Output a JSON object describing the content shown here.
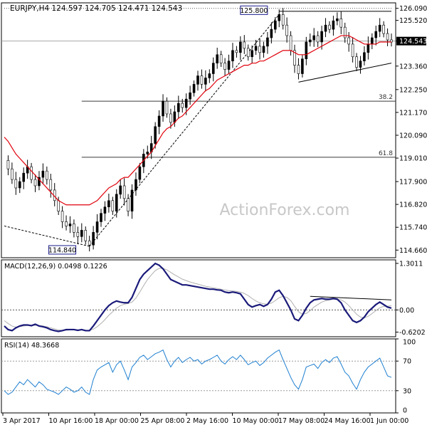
{
  "header": {
    "symbol_line": "EURJPY,H4  124.597 124.705 124.471 124.543"
  },
  "watermark": "ActionForex.com",
  "chart_data": [
    {
      "id": "price",
      "type": "candlestick",
      "title": "EURJPY,H4  124.597 124.705 124.471 124.543",
      "ylim": [
        114.3,
        126.35
      ],
      "y_ticks": [
        "126.090",
        "125.520",
        "124.543",
        "123.360",
        "122.250",
        "121.170",
        "120.090",
        "119.010",
        "117.900",
        "116.820",
        "115.740",
        "114.660"
      ],
      "current_price": 124.543,
      "current_price_label": "124.543",
      "x_ticks": [
        "3 Apr 2017",
        "10 Apr 16:00",
        "18 Apr 00:00",
        "25 Apr 08:00",
        "2 May 16:00",
        "10 May 00:00",
        "17 May 08:00",
        "24 May 16:00",
        "1 Jun 00:00"
      ],
      "annotations": [
        {
          "label": "125.800",
          "value": 125.8
        },
        {
          "label": "114.840",
          "value": 114.84
        }
      ],
      "fib_levels": [
        {
          "label": "38.2",
          "value": 121.7
        },
        {
          "label": "61.8",
          "value": 119.05
        }
      ],
      "grid": false,
      "series": [
        {
          "name": "",
          "kind": "price_path",
          "values": [
            118.9,
            118.5,
            118.0,
            117.6,
            117.9,
            118.3,
            118.6,
            118.0,
            117.7,
            118.1,
            118.4,
            118.0,
            117.5,
            117.0,
            116.5,
            116.0,
            115.8,
            115.9,
            115.5,
            115.3,
            115.6,
            115.1,
            114.9,
            115.5,
            116.0,
            116.4,
            116.7,
            117.0,
            116.5,
            117.3,
            117.7,
            117.1,
            116.5,
            117.5,
            118.0,
            118.6,
            119.2,
            119.3,
            119.7,
            120.5,
            121.0,
            121.7,
            121.1,
            120.7,
            121.2,
            121.6,
            121.4,
            121.8,
            122.1,
            122.5,
            122.9,
            122.5,
            122.8,
            123.0,
            123.5,
            123.9,
            123.5,
            123.2,
            123.6,
            124.1,
            124.0,
            124.5,
            124.2,
            123.8,
            124.1,
            124.3,
            124.0,
            124.3,
            124.7,
            125.1,
            125.5,
            125.8,
            125.3,
            124.8,
            124.1,
            123.4,
            123.0,
            123.7,
            124.5,
            124.6,
            124.8,
            124.5,
            125.0,
            125.3,
            125.1,
            125.5,
            125.6,
            125.2,
            124.7,
            124.4,
            123.8,
            123.3,
            123.6,
            124.0,
            124.4,
            124.7,
            125.0,
            125.3,
            124.9,
            124.6,
            124.5
          ]
        },
        {
          "name": "",
          "kind": "moving_average",
          "values": [
            120.0,
            119.8,
            119.5,
            119.2,
            119.0,
            118.8,
            118.6,
            118.4,
            118.2,
            118.0,
            117.8,
            117.6,
            117.4,
            117.2,
            117.0,
            116.9,
            116.8,
            116.8,
            116.8,
            116.8,
            116.8,
            116.8,
            116.8,
            116.9,
            117.0,
            117.2,
            117.4,
            117.6,
            117.7,
            117.8,
            118.0,
            118.1,
            118.1,
            118.3,
            118.5,
            118.7,
            118.9,
            119.1,
            119.3,
            119.6,
            119.9,
            120.2,
            120.4,
            120.5,
            120.7,
            120.9,
            121.0,
            121.2,
            121.4,
            121.6,
            121.8,
            122.0,
            122.2,
            122.3,
            122.5,
            122.7,
            122.8,
            122.9,
            123.0,
            123.1,
            123.2,
            123.3,
            123.4,
            123.4,
            123.5,
            123.5,
            123.6,
            123.6,
            123.7,
            123.8,
            123.9,
            124.0,
            124.1,
            124.1,
            124.1,
            124.0,
            123.9,
            123.9,
            123.9,
            124.0,
            124.1,
            124.2,
            124.3,
            124.4,
            124.5,
            124.6,
            124.7,
            124.8,
            124.8,
            124.8,
            124.7,
            124.6,
            124.5,
            124.4,
            124.4,
            124.4,
            124.4,
            124.5,
            124.5,
            124.5,
            124.5
          ]
        }
      ],
      "trendlines": [
        {
          "style": "solid",
          "from": [
            71,
            125.95
          ],
          "to": [
            100,
            125.95
          ]
        },
        {
          "style": "solid",
          "from": [
            76,
            122.6
          ],
          "to": [
            100,
            123.5
          ]
        },
        {
          "style": "dashed",
          "from": [
            0,
            115.8
          ],
          "to": [
            22,
            114.84
          ]
        },
        {
          "style": "dashed",
          "from": [
            22,
            114.84
          ],
          "to": [
            71,
            125.8
          ]
        },
        {
          "style": "dotted",
          "from": [
            0,
            126.09
          ],
          "to": [
            100,
            126.09
          ]
        }
      ]
    },
    {
      "id": "macd",
      "type": "line",
      "title": "MACD(12,26,9) 0.0498 0.1226",
      "ylim": [
        -0.75,
        1.4
      ],
      "y_ticks": [
        "1.3011",
        "0.00",
        "-0.6202"
      ],
      "zero_line": 0,
      "series": [
        {
          "name": "",
          "kind": "macd",
          "values": [
            -0.45,
            -0.55,
            -0.58,
            -0.5,
            -0.45,
            -0.42,
            -0.42,
            -0.44,
            -0.4,
            -0.45,
            -0.47,
            -0.5,
            -0.55,
            -0.58,
            -0.6,
            -0.58,
            -0.55,
            -0.55,
            -0.55,
            -0.57,
            -0.55,
            -0.58,
            -0.58,
            -0.45,
            -0.3,
            -0.15,
            0.0,
            0.12,
            0.2,
            0.25,
            0.22,
            0.2,
            0.2,
            0.35,
            0.6,
            0.85,
            1.0,
            1.1,
            1.2,
            1.3,
            1.25,
            1.15,
            1.0,
            0.85,
            0.8,
            0.75,
            0.7,
            0.7,
            0.68,
            0.66,
            0.64,
            0.62,
            0.6,
            0.58,
            0.58,
            0.56,
            0.55,
            0.5,
            0.48,
            0.5,
            0.48,
            0.45,
            0.3,
            0.15,
            0.08,
            0.12,
            0.15,
            0.1,
            0.15,
            0.3,
            0.5,
            0.55,
            0.4,
            0.2,
            0.0,
            -0.25,
            -0.3,
            -0.15,
            0.05,
            0.2,
            0.28,
            0.3,
            0.32,
            0.3,
            0.3,
            0.32,
            0.3,
            0.2,
            0.0,
            -0.15,
            -0.3,
            -0.35,
            -0.3,
            -0.2,
            -0.05,
            0.05,
            0.15,
            0.22,
            0.15,
            0.08,
            0.05
          ]
        },
        {
          "name": "",
          "kind": "signal",
          "values": [
            -0.3,
            -0.38,
            -0.45,
            -0.48,
            -0.47,
            -0.45,
            -0.44,
            -0.44,
            -0.43,
            -0.44,
            -0.45,
            -0.47,
            -0.5,
            -0.53,
            -0.56,
            -0.57,
            -0.57,
            -0.56,
            -0.56,
            -0.56,
            -0.56,
            -0.57,
            -0.57,
            -0.54,
            -0.47,
            -0.38,
            -0.27,
            -0.15,
            -0.05,
            0.05,
            0.12,
            0.16,
            0.18,
            0.22,
            0.33,
            0.5,
            0.68,
            0.85,
            0.98,
            1.1,
            1.16,
            1.16,
            1.12,
            1.05,
            0.98,
            0.92,
            0.86,
            0.82,
            0.78,
            0.75,
            0.72,
            0.69,
            0.66,
            0.64,
            0.62,
            0.6,
            0.58,
            0.56,
            0.54,
            0.53,
            0.52,
            0.5,
            0.46,
            0.4,
            0.32,
            0.25,
            0.2,
            0.17,
            0.16,
            0.19,
            0.26,
            0.34,
            0.38,
            0.35,
            0.26,
            0.1,
            -0.05,
            -0.12,
            -0.1,
            -0.02,
            0.08,
            0.15,
            0.22,
            0.26,
            0.28,
            0.3,
            0.3,
            0.28,
            0.22,
            0.12,
            0.0,
            -0.12,
            -0.2,
            -0.22,
            -0.18,
            -0.1,
            -0.02,
            0.06,
            0.1,
            0.1,
            0.12
          ]
        }
      ],
      "trendlines": [
        {
          "style": "solid",
          "from": [
            79,
            0.38
          ],
          "to": [
            100,
            0.28
          ]
        }
      ]
    },
    {
      "id": "rsi",
      "type": "line",
      "title": "RSI(14) 48.3668",
      "ylim": [
        0,
        100
      ],
      "y_ticks": [
        "100",
        "70",
        "30",
        "0"
      ],
      "levels": [
        70,
        30
      ],
      "series": [
        {
          "name": "",
          "kind": "rsi",
          "values": [
            30,
            25,
            28,
            35,
            42,
            38,
            45,
            40,
            35,
            42,
            38,
            32,
            30,
            28,
            25,
            30,
            35,
            32,
            28,
            30,
            35,
            28,
            25,
            45,
            58,
            62,
            65,
            68,
            55,
            65,
            70,
            58,
            45,
            62,
            68,
            75,
            78,
            72,
            76,
            80,
            82,
            85,
            72,
            62,
            70,
            75,
            68,
            72,
            75,
            70,
            72,
            66,
            70,
            72,
            75,
            78,
            70,
            66,
            72,
            76,
            72,
            78,
            72,
            65,
            68,
            70,
            64,
            68,
            74,
            78,
            82,
            85,
            72,
            60,
            48,
            38,
            32,
            45,
            62,
            64,
            66,
            60,
            68,
            72,
            68,
            74,
            76,
            66,
            55,
            50,
            40,
            32,
            45,
            55,
            62,
            66,
            70,
            74,
            62,
            50,
            48
          ]
        }
      ]
    }
  ]
}
